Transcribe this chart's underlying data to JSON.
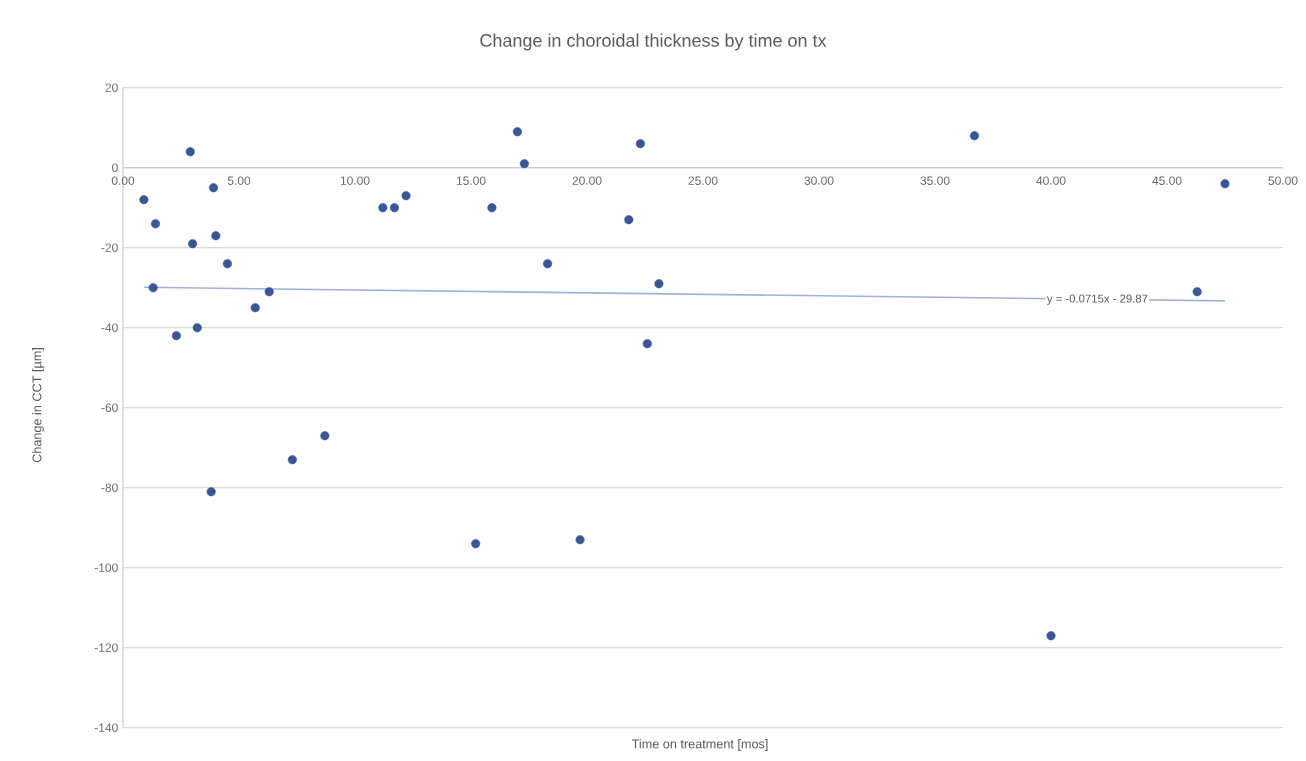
{
  "chart_data": {
    "type": "scatter",
    "title": "Change in choroidal thickness by time on tx",
    "xlabel": "Time on treatment [mos]",
    "ylabel": "Change in CCT [µm]",
    "xlim": [
      0,
      50
    ],
    "ylim": [
      -140,
      20
    ],
    "xticks": [
      {
        "value": 0,
        "label": "0.00"
      },
      {
        "value": 5,
        "label": "5.00"
      },
      {
        "value": 10,
        "label": "10.00"
      },
      {
        "value": 15,
        "label": "15.00"
      },
      {
        "value": 20,
        "label": "20.00"
      },
      {
        "value": 25,
        "label": "25.00"
      },
      {
        "value": 30,
        "label": "30.00"
      },
      {
        "value": 35,
        "label": "35.00"
      },
      {
        "value": 40,
        "label": "40.00"
      },
      {
        "value": 45,
        "label": "45.00"
      },
      {
        "value": 50,
        "label": "50.00"
      }
    ],
    "yticks": [
      -140,
      -120,
      -100,
      -80,
      -60,
      -40,
      -20,
      0,
      20
    ],
    "grid": "y",
    "marker": "circle",
    "series": [
      {
        "color": "#3a5795",
        "x": [
          0.9,
          1.4,
          1.3,
          2.3,
          2.9,
          3.0,
          3.2,
          3.9,
          4.0,
          4.5,
          3.8,
          5.7,
          6.3,
          7.3,
          8.7,
          11.2,
          11.7,
          12.2,
          15.2,
          15.9,
          17.0,
          17.3,
          18.3,
          19.7,
          21.8,
          22.3,
          22.6,
          23.1,
          36.7,
          40.0,
          46.3,
          47.5
        ],
        "values": [
          -8,
          -14,
          -30,
          -42,
          4,
          -19,
          -40,
          -5,
          -17,
          -24,
          -81,
          -35,
          -31,
          -73,
          -67,
          -10,
          -10,
          -7,
          -94,
          -10,
          9,
          1,
          -24,
          -93,
          -13,
          6,
          -44,
          -29,
          8,
          -117,
          -31,
          -4
        ]
      },
      {
        "type": "line",
        "color": "#9db3d9",
        "marker": "none",
        "x": [
          0.9,
          47.5
        ],
        "values": [
          -29.9,
          -33.3
        ]
      }
    ],
    "annotations": [
      {
        "text": "y = -0.0715x - 29.87",
        "x": 42,
        "y": -33
      }
    ]
  }
}
